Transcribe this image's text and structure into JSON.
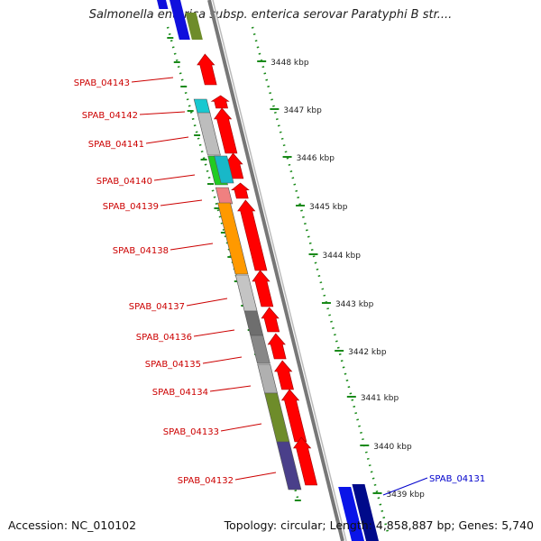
{
  "title": "Salmonella enterica subsp. enterica serovar Paratyphi B str....",
  "accession": "Accession: NC_010102",
  "topology": "Topology: circular; Length: 4,858,887 bp; Genes: 5,740",
  "colors": {
    "cds": "#ff0000",
    "backbone": "#888888",
    "ticks": "#008000",
    "selected_label": "#0000cc",
    "label": "#cc0000"
  },
  "ruler_labels": [
    "3448 kbp",
    "3447 kbp",
    "3446 kbp",
    "3445 kbp",
    "3444 kbp",
    "3443 kbp",
    "3442 kbp",
    "3441 kbp",
    "3440 kbp",
    "3439 kbp"
  ],
  "gene_labels": [
    "SPAB_04143",
    "SPAB_04142",
    "SPAB_04141",
    "SPAB_04140",
    "SPAB_04139",
    "SPAB_04138",
    "SPAB_04137",
    "SPAB_04136",
    "SPAB_04135",
    "SPAB_04134",
    "SPAB_04133",
    "SPAB_04132",
    "SPAB_04131"
  ]
}
